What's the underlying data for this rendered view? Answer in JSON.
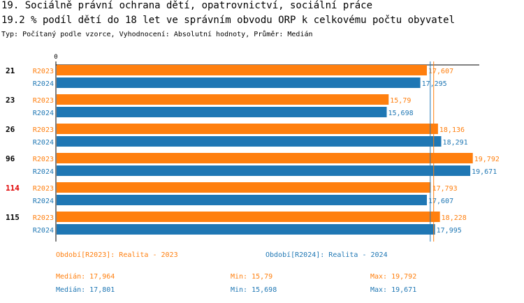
{
  "header": {
    "title_line1": "19. Sociálně právní ochrana dětí, opatrovnictví, sociální práce",
    "title_line2": "19.2 % podíl dětí do 18 let ve správním obvodu ORP k celkovému počtu obyvatel",
    "subtitle": "Typ: Počítaný podle vzorce, Vyhodnocení: Absolutní hodnoty, Průměr: Medián"
  },
  "colors": {
    "r2023": "#ff7f0e",
    "r2024": "#1f77b4",
    "highlight": "#e00000"
  },
  "chart_data": {
    "type": "bar",
    "orientation": "horizontal",
    "axis_zero_label": "0",
    "xlim": [
      0,
      20.0
    ],
    "groups": [
      {
        "label": "21",
        "highlight": false
      },
      {
        "label": "23",
        "highlight": false
      },
      {
        "label": "26",
        "highlight": false
      },
      {
        "label": "96",
        "highlight": false
      },
      {
        "label": "114",
        "highlight": true
      },
      {
        "label": "115",
        "highlight": false
      }
    ],
    "series": [
      {
        "name": "R2023",
        "color": "#ff7f0e",
        "values": [
          17.607,
          15.79,
          18.136,
          19.792,
          17.793,
          18.228
        ],
        "labels": [
          "17,607",
          "15,79",
          "18,136",
          "19,792",
          "17,793",
          "18,228"
        ],
        "median": 17.964
      },
      {
        "name": "R2024",
        "color": "#1f77b4",
        "values": [
          17.295,
          15.698,
          18.291,
          19.671,
          17.607,
          17.995
        ],
        "labels": [
          "17,295",
          "15,698",
          "18,291",
          "19,671",
          "17,607",
          "17,995"
        ],
        "median": 17.801
      }
    ]
  },
  "legend": {
    "period_2023": "Období[R2023]: Realita - 2023",
    "period_2024": "Období[R2024]: Realita - 2024"
  },
  "stats": {
    "r2023": {
      "median": "Medián: 17,964",
      "min": "Min: 15,79",
      "max": "Max: 19,792"
    },
    "r2024": {
      "median": "Medián: 17,801",
      "min": "Min: 15,698",
      "max": "Max: 19,671"
    }
  }
}
